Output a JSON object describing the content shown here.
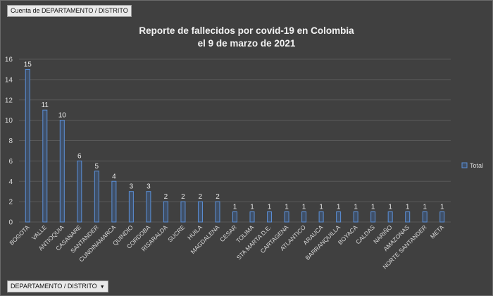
{
  "pivot": {
    "filter_field_label": "Cuenta de DEPARTAMENTO / DISTRITO",
    "axis_field_label": "DEPARTAMENTO / DISTRITO",
    "axis_field_icon": "dropdown-arrow-icon"
  },
  "colors": {
    "background": "#404040",
    "bar_fill": "#3f4f66",
    "bar_stroke": "#5b8fd6",
    "gridline": "#595959",
    "text": "#d9d9d9"
  },
  "chart_data": {
    "type": "bar",
    "title_lines": [
      "Reporte de fallecidos por covid-19 en  Colombia",
      "el 9 de marzo de 2021"
    ],
    "categories": [
      "BOGOTA",
      "VALLE",
      "ANTIOQUIA",
      "CASANARE",
      "SANTANDER",
      "CUNDINAMARCA",
      "QUINDIO",
      "CORDOBA",
      "RISARALDA",
      "SUCRE",
      "HUILA",
      "MAGDALENA",
      "CESAR",
      "TOLIMA",
      "STA MARTA D.E.",
      "CARTAGENA",
      "ATLANTICO",
      "ARAUCA",
      "BARRANQUILLA",
      "BOYACA",
      "CALDAS",
      "NARIÑO",
      "AMAZONAS",
      "NORTE SANTANDER",
      "META"
    ],
    "series": [
      {
        "name": "Total",
        "values": [
          15,
          11,
          10,
          6,
          5,
          4,
          3,
          3,
          2,
          2,
          2,
          2,
          1,
          1,
          1,
          1,
          1,
          1,
          1,
          1,
          1,
          1,
          1,
          1,
          1
        ]
      }
    ],
    "ylim": [
      0,
      16
    ],
    "yticks": [
      0,
      2,
      4,
      6,
      8,
      10,
      12,
      14,
      16
    ],
    "grid": true,
    "data_labels": true,
    "legend_position": "right"
  }
}
